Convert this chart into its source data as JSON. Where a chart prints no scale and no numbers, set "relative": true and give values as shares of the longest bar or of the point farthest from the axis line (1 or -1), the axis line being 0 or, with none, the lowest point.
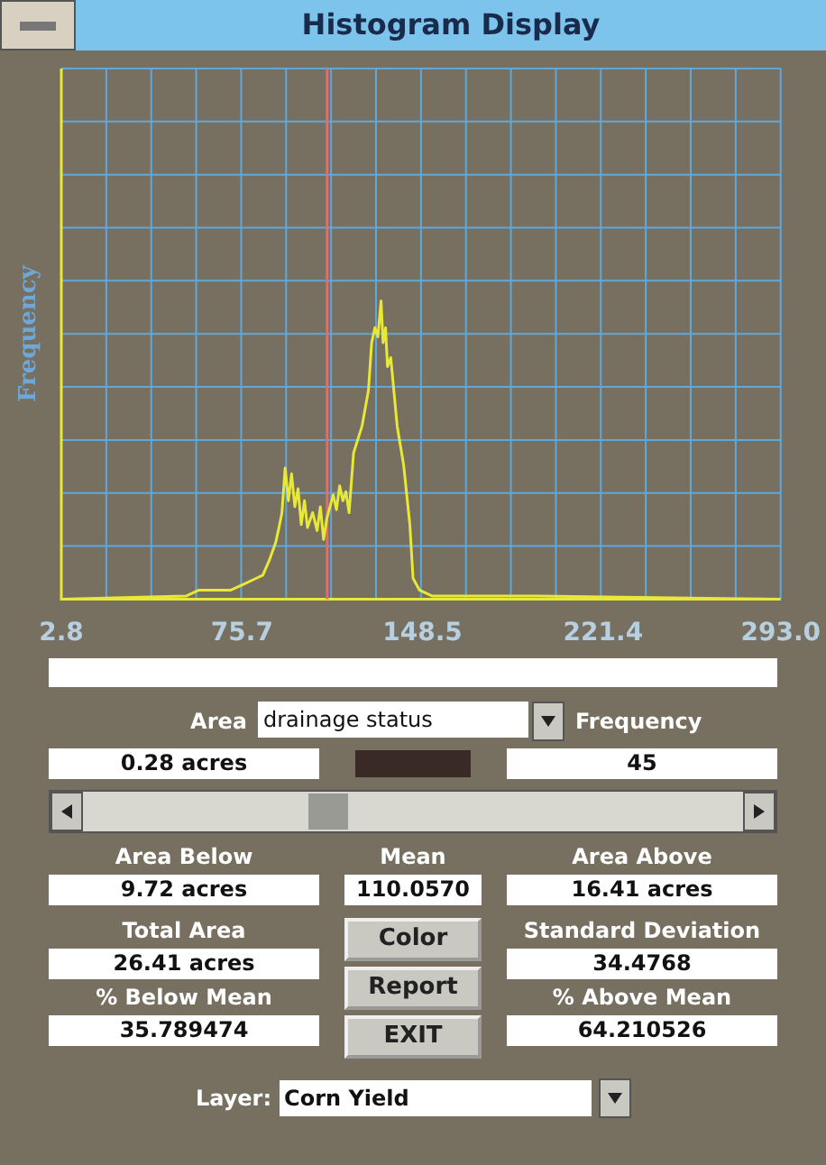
{
  "chart_data": {
    "type": "line",
    "title": "Histogram Display",
    "ylabel": "Frequency",
    "relative": true,
    "x": [
      2.8,
      53.1,
      58.3,
      71.2,
      76.4,
      81.5,
      84.1,
      86.7,
      89.3,
      90.6,
      91.8,
      93.1,
      94.4,
      95.7,
      97.0,
      98.3,
      99.6,
      100.9,
      102.1,
      104.2,
      106.0,
      107.3,
      108.6,
      109.9,
      112.5,
      113.8,
      115.1,
      116.4,
      117.6,
      118.9,
      120.7,
      124.1,
      126.7,
      128.0,
      129.3,
      130.5,
      131.8,
      132.6,
      133.6,
      134.4,
      135.7,
      138.3,
      140.9,
      143.4,
      144.7,
      147.3,
      152.5,
      184.7,
      195.0,
      293.0
    ],
    "series": [
      {
        "color": "#e8e838",
        "values": [
          0,
          0.01,
          0.03,
          0.03,
          0.05,
          0.07,
          0.08,
          0.13,
          0.19,
          0.24,
          0.29,
          0.44,
          0.33,
          0.42,
          0.31,
          0.37,
          0.25,
          0.33,
          0.24,
          0.29,
          0.23,
          0.31,
          0.2,
          0.27,
          0.35,
          0.3,
          0.38,
          0.33,
          0.36,
          0.29,
          0.49,
          0.58,
          0.7,
          0.86,
          0.91,
          0.88,
          1,
          0.86,
          0.91,
          0.78,
          0.81,
          0.58,
          0.45,
          0.25,
          0.07,
          0.03,
          0.01,
          0.01,
          0.01,
          0
        ]
      }
    ],
    "xlim": [
      2.8,
      293.0
    ],
    "xticks": [
      2.8,
      75.7,
      148.5,
      221.4,
      {
        "value": 293,
        "label": "293.0"
      }
    ],
    "grid": true,
    "legend": false,
    "marker": "none",
    "line_style": "solid",
    "ref_lines": [
      {
        "axis": "x",
        "value": 110.057,
        "color": "#e86a6a"
      }
    ],
    "annotations": [
      "Area",
      "drainage status",
      "Frequency",
      "0.28 acres",
      "45",
      "Area Below",
      "Mean",
      "Area Above",
      "9.72 acres",
      "110.0570",
      "16.41 acres",
      "Total Area",
      "Color",
      "Standard Deviation",
      "26.41 acres",
      "34.4768",
      "Report",
      "% Below Mean",
      "% Above Mean",
      "35.789474",
      "EXIT",
      "64.210526",
      "Layer:",
      "Corn Yield"
    ]
  }
}
